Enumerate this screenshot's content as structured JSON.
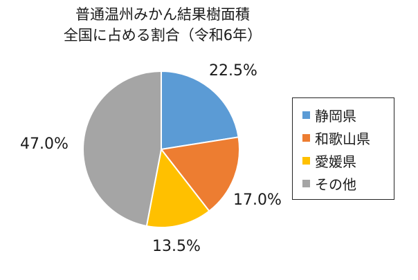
{
  "chart_data": {
    "type": "pie",
    "title": [
      "普通温州みかん結果樹面積",
      "全国に占める割合（令和6年）"
    ],
    "categories": [
      "静岡県",
      "和歌山県",
      "愛媛県",
      "その他"
    ],
    "values": [
      22.5,
      17.0,
      13.5,
      47.0
    ],
    "labels": [
      "22.5%",
      "17.0%",
      "13.5%",
      "47.0%"
    ],
    "colors": [
      "#5b9bd5",
      "#ed7d31",
      "#ffc000",
      "#a5a5a5"
    ],
    "legend_position": "right"
  }
}
